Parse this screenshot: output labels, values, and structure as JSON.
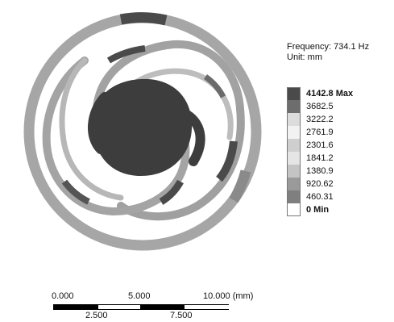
{
  "info": {
    "frequency": "Frequency: 734.1 Hz",
    "unit": "Unit: mm"
  },
  "legend": {
    "items": [
      {
        "label": "4142.8 Max",
        "bold": true,
        "color": "#4a4a4a"
      },
      {
        "label": "3682.5",
        "bold": false,
        "color": "#6d6d6d"
      },
      {
        "label": "3222.2",
        "bold": false,
        "color": "#dcdcdc"
      },
      {
        "label": "2761.9",
        "bold": false,
        "color": "#f2f2f2"
      },
      {
        "label": "2301.6",
        "bold": false,
        "color": "#cfcfcf"
      },
      {
        "label": "1841.2",
        "bold": false,
        "color": "#e5e5e5"
      },
      {
        "label": "1380.9",
        "bold": false,
        "color": "#c4c4c4"
      },
      {
        "label": "920.62",
        "bold": false,
        "color": "#9a9a9a"
      },
      {
        "label": "460.31",
        "bold": false,
        "color": "#7f7f7f"
      },
      {
        "label": "0 Min",
        "bold": true,
        "color": "#ffffff"
      }
    ]
  },
  "scale_bar": {
    "top_labels": [
      "0.000",
      "5.000",
      "10.000 (mm)"
    ],
    "bottom_labels": [
      "2.500",
      "7.500"
    ]
  },
  "colors": {
    "outer_ring": "#a6a6a6",
    "spiral_arm": "#a2a2a2",
    "hub": "#3d3d3d",
    "highlight": "#4a4a4a"
  }
}
